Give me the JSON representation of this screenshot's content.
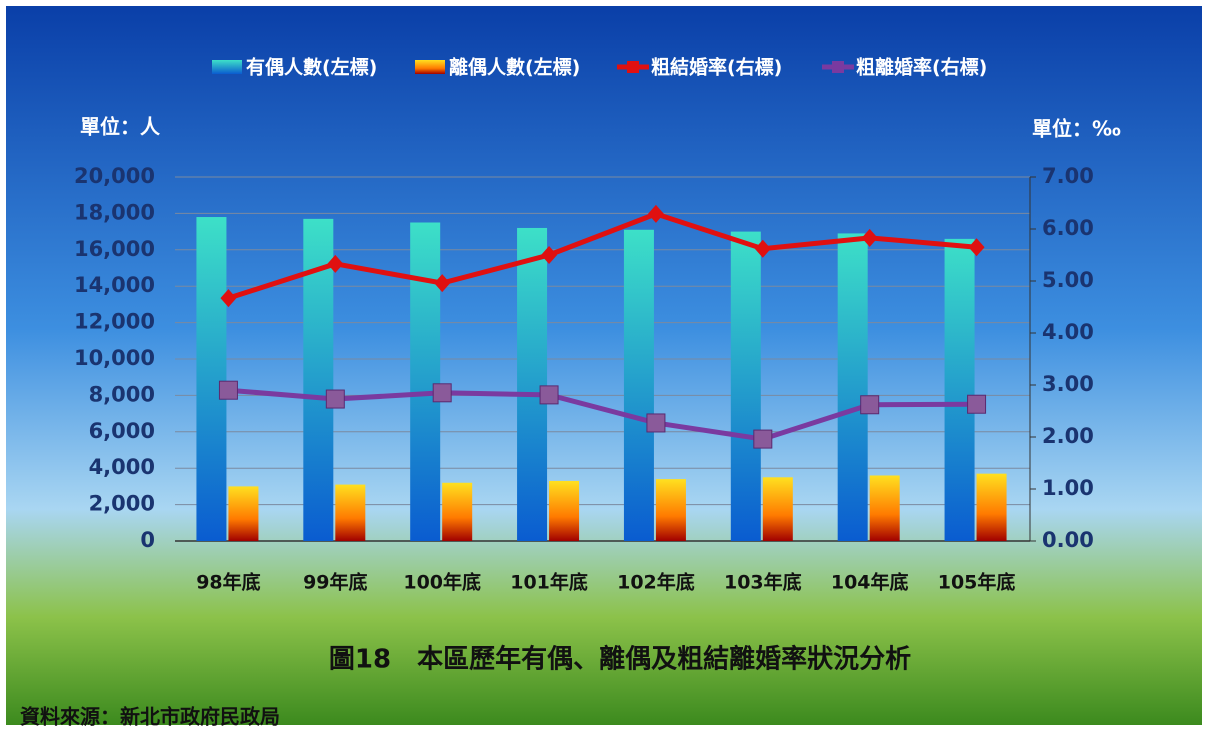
{
  "chart_data": {
    "type": "bar-line",
    "title": "圖18　本區歷年有偶、離偶及粗結離婚率狀況分析",
    "source": "資料來源：新北市政府民政局",
    "y_label": "單位：人",
    "y2_label": "單位：‰",
    "categories": [
      "98年底",
      "99年底",
      "100年底",
      "101年底",
      "102年底",
      "103年底",
      "104年底",
      "105年底"
    ],
    "series": [
      {
        "name": "有偶人數(左標)",
        "type": "bar",
        "color": "#1e8fd8",
        "values": [
          17800,
          17700,
          17500,
          17200,
          17100,
          17000,
          16900,
          16600
        ]
      },
      {
        "name": "離偶人數(左標)",
        "type": "bar",
        "color": "#ff8c00",
        "values": [
          3000,
          3100,
          3200,
          3300,
          3400,
          3500,
          3600,
          3700
        ]
      },
      {
        "name": "粗結婚率(右標)",
        "type": "line",
        "axis": "y2",
        "color": "#e01010",
        "values": [
          4.67,
          5.33,
          4.96,
          5.5,
          6.29,
          5.62,
          5.83,
          5.65
        ]
      },
      {
        "name": "粗離婚率(右標)",
        "type": "line",
        "axis": "y2",
        "color": "#7a3aa0",
        "values": [
          2.9,
          2.73,
          2.85,
          2.81,
          2.27,
          1.96,
          2.62,
          2.63
        ]
      }
    ],
    "ylim": [
      0,
      20000
    ],
    "yticks": [
      0,
      {
        "value": 2000,
        "label": "2,000"
      },
      {
        "value": 4000,
        "label": "4,000"
      },
      {
        "value": 6000,
        "label": "6,000"
      },
      {
        "value": 8000,
        "label": "8,000"
      },
      {
        "value": 10000,
        "label": "10,000"
      },
      {
        "value": 12000,
        "label": "12,000"
      },
      {
        "value": 14000,
        "label": "14,000"
      },
      {
        "value": 16000,
        "label": "16,000"
      },
      {
        "value": 18000,
        "label": "18,000"
      },
      {
        "value": 20000,
        "label": "20,000"
      }
    ],
    "y2lim": [
      0,
      7
    ],
    "y2ticks": [
      {
        "value": 0,
        "label": "0.00"
      },
      {
        "value": 1,
        "label": "1.00"
      },
      {
        "value": 2,
        "label": "2.00"
      },
      {
        "value": 3,
        "label": "3.00"
      },
      {
        "value": 4,
        "label": "4.00"
      },
      {
        "value": 5,
        "label": "5.00"
      },
      {
        "value": 6,
        "label": "6.00"
      },
      {
        "value": 7,
        "label": "7.00"
      }
    ],
    "grid": true
  }
}
